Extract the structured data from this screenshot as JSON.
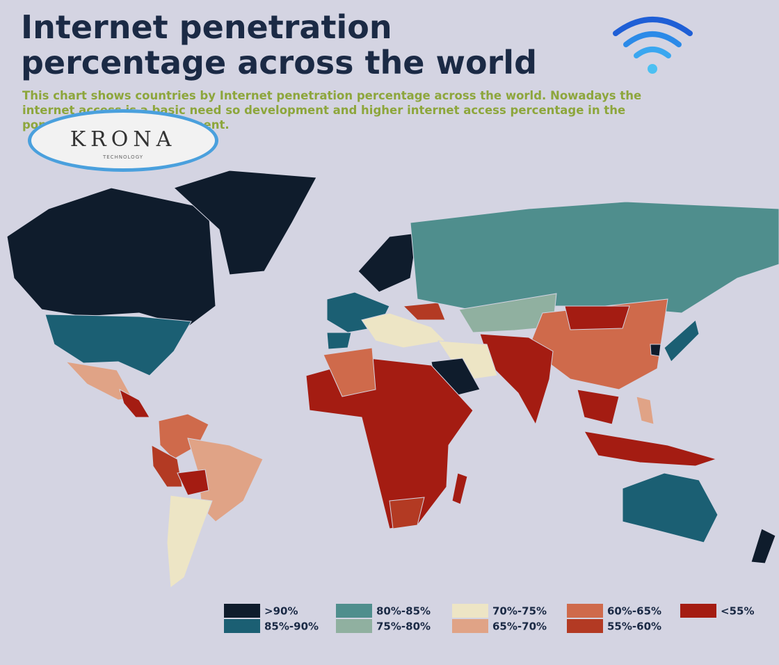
{
  "header": {
    "title_lines": [
      "Internet penetration",
      "percentage across the world"
    ],
    "subtitle_lines": [
      "This chart shows countries by Internet penetration percentage across the world. Nowadays the",
      "internet access is a basic need so development and higher internet access percentage in the",
      "population shows development."
    ]
  },
  "logo": {
    "name": "KRONA",
    "tagline": "TECHNOLOGY"
  },
  "legend": {
    "items": [
      {
        "label": ">90%",
        "color": "#0f1c2c"
      },
      {
        "label": "85%-90%",
        "color": "#1b5f73"
      },
      {
        "label": "80%-85%",
        "color": "#4f8e8d"
      },
      {
        "label": "75%-80%",
        "color": "#90b0a0"
      },
      {
        "label": "70%-75%",
        "color": "#ede5c5"
      },
      {
        "label": "65%-70%",
        "color": "#e0a386"
      },
      {
        "label": "60%-65%",
        "color": "#cf6a4b"
      },
      {
        "label": "55%-60%",
        "color": "#b33a23"
      },
      {
        "label": "<55%",
        "color": "#a41c12"
      }
    ]
  }
}
